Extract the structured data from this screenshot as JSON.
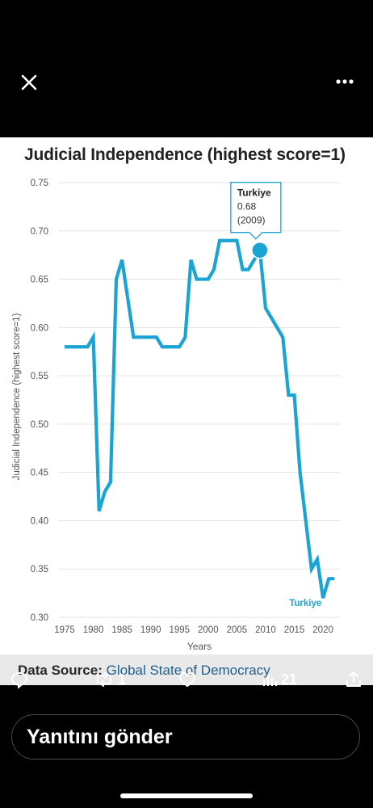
{
  "topbar": {
    "close_icon": "close-icon",
    "more_icon": "more-horizontal-icon"
  },
  "chart_data": {
    "type": "line",
    "title": "Judicial Independence (highest score=1)",
    "xlabel": "Years",
    "ylabel": "Judicial Independence (highest score=1)",
    "xlim": [
      1975,
      2022
    ],
    "ylim": [
      0.3,
      0.75
    ],
    "x_ticks": [
      "1975",
      "1980",
      "1985",
      "1990",
      "1995",
      "2000",
      "2005",
      "2010",
      "2015",
      "2020"
    ],
    "y_ticks": [
      "0.30",
      "0.35",
      "0.40",
      "0.45",
      "0.50",
      "0.55",
      "0.60",
      "0.65",
      "0.70",
      "0.75"
    ],
    "grid": true,
    "series": [
      {
        "name": "Turkiye",
        "color": "#1ba3d4",
        "x": [
          1975,
          1976,
          1977,
          1978,
          1979,
          1980,
          1981,
          1982,
          1983,
          1984,
          1985,
          1986,
          1987,
          1988,
          1989,
          1990,
          1991,
          1992,
          1993,
          1994,
          1995,
          1996,
          1997,
          1998,
          1999,
          2000,
          2001,
          2002,
          2003,
          2004,
          2005,
          2006,
          2007,
          2008,
          2009,
          2010,
          2011,
          2012,
          2013,
          2014,
          2015,
          2016,
          2017,
          2018,
          2019,
          2020,
          2021,
          2022
        ],
        "y": [
          0.58,
          0.58,
          0.58,
          0.58,
          0.58,
          0.59,
          0.41,
          0.43,
          0.44,
          0.65,
          0.67,
          0.63,
          0.59,
          0.59,
          0.59,
          0.59,
          0.59,
          0.58,
          0.58,
          0.58,
          0.58,
          0.59,
          0.67,
          0.65,
          0.65,
          0.65,
          0.66,
          0.69,
          0.69,
          0.69,
          0.69,
          0.66,
          0.66,
          0.67,
          0.68,
          0.62,
          0.61,
          0.6,
          0.59,
          0.53,
          0.53,
          0.45,
          0.4,
          0.35,
          0.36,
          0.32,
          0.34,
          0.34
        ]
      }
    ],
    "tooltip": {
      "title": "Turkiye",
      "value": "0.68",
      "year": "(2009)",
      "x": 2009,
      "y": 0.68
    },
    "series_label": "Turkiye"
  },
  "source": {
    "label": "Data Source:",
    "link": "Global State of Democracy"
  },
  "actions": {
    "reply_icon": "reply-icon",
    "retweet_count": "1",
    "like_icon": "heart-icon",
    "views_count": "21",
    "share_icon": "share-icon"
  },
  "reply": {
    "placeholder": "Yanıtını gönder"
  }
}
